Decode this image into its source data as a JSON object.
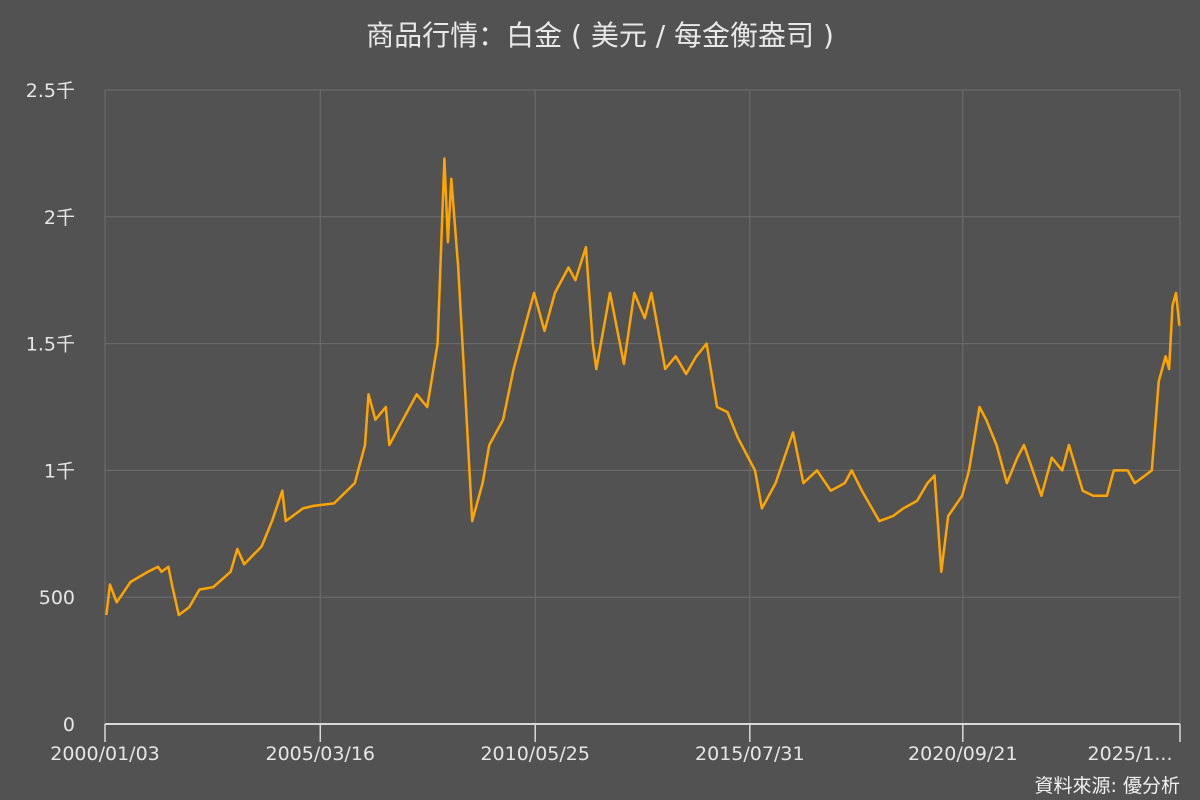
{
  "chart_data": {
    "type": "line",
    "title": "商品行情：白金 ( 美元 / 每金衡盎司 )",
    "source": "資料來源: 優分析",
    "xlabel": "",
    "ylabel": "",
    "xlim": [
      "2000-01-03",
      "2025-12-20"
    ],
    "ylim": [
      0,
      2500
    ],
    "grid": true,
    "line_color": "#ffa500",
    "x_ticks": [
      {
        "date": "2000-01-03",
        "label": "2000/01/03"
      },
      {
        "date": "2005-03-16",
        "label": "2005/03/16"
      },
      {
        "date": "2010-05-25",
        "label": "2010/05/25"
      },
      {
        "date": "2015-07-31",
        "label": "2015/07/31"
      },
      {
        "date": "2020-09-21",
        "label": "2020/09/21"
      },
      {
        "date": "2025-12-20",
        "label": "2025/1..."
      }
    ],
    "y_ticks": [
      {
        "value": 0,
        "label": "0"
      },
      {
        "value": 500,
        "label": "500"
      },
      {
        "value": 1000,
        "label": "1千"
      },
      {
        "value": 1500,
        "label": "1.5千"
      },
      {
        "value": 2000,
        "label": "2千"
      },
      {
        "value": 2500,
        "label": "2.5千"
      }
    ],
    "series": [
      {
        "x": [
          "2000-01",
          "2000-02",
          "2000-04",
          "2000-08",
          "2001-01",
          "2001-04",
          "2001-05",
          "2001-07",
          "2001-08",
          "2001-10",
          "2002-01",
          "2002-04",
          "2002-08",
          "2003-01",
          "2003-03",
          "2003-05",
          "2003-10",
          "2004-01",
          "2004-04",
          "2004-05",
          "2004-10",
          "2005-01",
          "2005-07",
          "2006-01",
          "2006-04",
          "2006-05",
          "2006-07",
          "2006-10",
          "2006-11",
          "2007-03",
          "2007-07",
          "2007-10",
          "2008-01",
          "2008-03",
          "2008-04",
          "2008-05",
          "2008-07",
          "2008-09",
          "2008-11",
          "2009-02",
          "2009-04",
          "2009-08",
          "2009-11",
          "2010-03",
          "2010-05",
          "2010-08",
          "2010-11",
          "2011-03",
          "2011-05",
          "2011-08",
          "2011-10",
          "2011-11",
          "2012-03",
          "2012-07",
          "2012-10",
          "2013-01",
          "2013-03",
          "2013-07",
          "2013-10",
          "2014-01",
          "2014-04",
          "2014-07",
          "2014-10",
          "2015-01",
          "2015-04",
          "2015-09",
          "2015-11",
          "2016-03",
          "2016-08",
          "2016-11",
          "2017-03",
          "2017-07",
          "2017-11",
          "2018-01",
          "2018-04",
          "2018-09",
          "2019-01",
          "2019-04",
          "2019-08",
          "2019-11",
          "2020-01",
          "2020-03",
          "2020-05",
          "2020-09",
          "2020-11",
          "2021-02",
          "2021-04",
          "2021-07",
          "2021-10",
          "2022-01",
          "2022-03",
          "2022-08",
          "2022-11",
          "2023-02",
          "2023-04",
          "2023-08",
          "2023-11",
          "2024-03",
          "2024-05",
          "2024-09",
          "2024-11",
          "2025-02",
          "2025-04",
          "2025-06",
          "2025-08",
          "2025-09",
          "2025-10",
          "2025-11",
          "2025-12"
        ],
        "y": [
          430,
          550,
          480,
          560,
          600,
          620,
          600,
          620,
          550,
          430,
          460,
          530,
          540,
          600,
          690,
          630,
          700,
          800,
          920,
          800,
          850,
          860,
          870,
          950,
          1100,
          1300,
          1200,
          1250,
          1100,
          1200,
          1300,
          1250,
          1500,
          2230,
          1900,
          2150,
          1800,
          1300,
          800,
          950,
          1100,
          1200,
          1400,
          1600,
          1700,
          1550,
          1700,
          1800,
          1750,
          1880,
          1500,
          1400,
          1700,
          1420,
          1700,
          1600,
          1700,
          1400,
          1450,
          1380,
          1450,
          1500,
          1250,
          1230,
          1130,
          1000,
          850,
          950,
          1150,
          950,
          1000,
          920,
          950,
          1000,
          920,
          800,
          820,
          850,
          880,
          950,
          980,
          600,
          820,
          900,
          1000,
          1250,
          1200,
          1100,
          950,
          1050,
          1100,
          900,
          1050,
          1000,
          1100,
          920,
          900,
          900,
          1000,
          1000,
          950,
          980,
          1000,
          1350,
          1450,
          1400,
          1650,
          1700,
          1570
        ]
      }
    ]
  }
}
